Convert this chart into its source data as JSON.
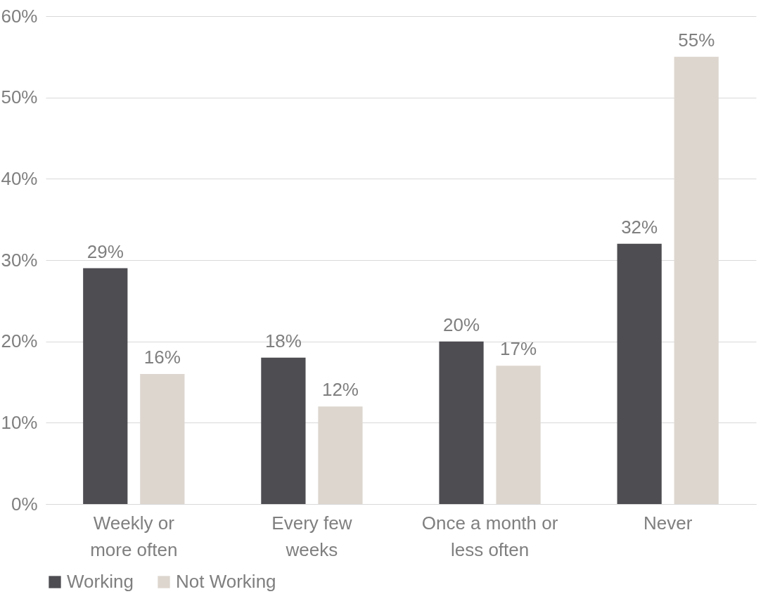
{
  "chart_data": {
    "type": "bar",
    "categories": [
      "Weekly or\nmore often",
      "Every few\nweeks",
      "Once a month or\nless often",
      "Never"
    ],
    "series": [
      {
        "name": "Working",
        "color": "#4e4d52",
        "values": [
          29,
          18,
          20,
          32
        ],
        "value_labels": [
          "29%",
          "18%",
          "20%",
          "32%"
        ]
      },
      {
        "name": "Not Working",
        "color": "#ddd6cf",
        "values": [
          16,
          12,
          17,
          55
        ],
        "value_labels": [
          "16%",
          "12%",
          "17%",
          "55%"
        ]
      }
    ],
    "ylim": [
      0,
      60
    ],
    "yticks": [
      {
        "value": 0,
        "label": "0%"
      },
      {
        "value": 10,
        "label": "10%"
      },
      {
        "value": 20,
        "label": "20%"
      },
      {
        "value": 30,
        "label": "30%"
      },
      {
        "value": 40,
        "label": "40%"
      },
      {
        "value": 50,
        "label": "50%"
      },
      {
        "value": 60,
        "label": "60%"
      }
    ],
    "grid": "y",
    "legend": "bottom"
  }
}
